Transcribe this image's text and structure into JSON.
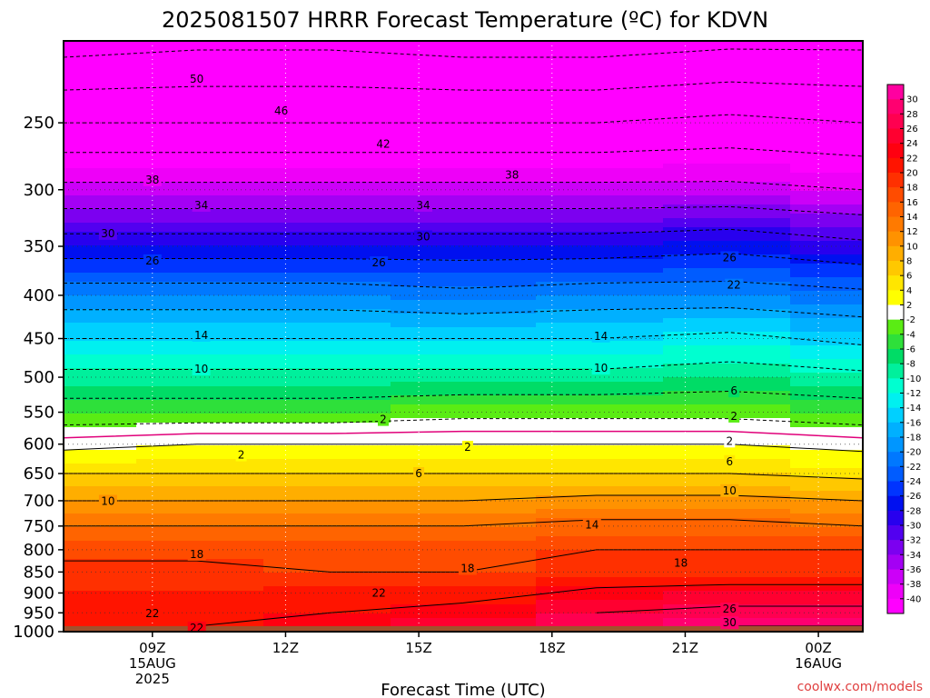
{
  "chart_data": {
    "type": "heatmap",
    "title": "2025081507 HRRR Forecast Temperature (ºC) for KDVN",
    "xlabel": "Forecast Time (UTC)",
    "ylabel": "",
    "credit": "coolwx.com/models",
    "y_scale": "log",
    "y_inverted": true,
    "ylim": [
      1000,
      200
    ],
    "yticks": [
      "250",
      "300",
      "350",
      "400",
      "450",
      "500",
      "550",
      "600",
      "650",
      "700",
      "750",
      "800",
      "850",
      "900",
      "950",
      "1000"
    ],
    "xticks": [
      {
        "hour": 9,
        "lines": [
          "09Z",
          "15AUG",
          "2025"
        ]
      },
      {
        "hour": 12,
        "lines": [
          "12Z"
        ]
      },
      {
        "hour": 15,
        "lines": [
          "15Z"
        ]
      },
      {
        "hour": 18,
        "lines": [
          "18Z"
        ]
      },
      {
        "hour": 21,
        "lines": [
          "21Z"
        ]
      },
      {
        "hour": 24,
        "lines": [
          "00Z",
          "16AUG"
        ]
      }
    ],
    "xlim_hours": [
      7.0,
      25.0
    ],
    "colorbar_levels": [
      30,
      28,
      26,
      24,
      22,
      20,
      18,
      16,
      14,
      12,
      10,
      8,
      6,
      4,
      2,
      -2,
      -4,
      -6,
      -8,
      -10,
      -12,
      -14,
      -16,
      -18,
      -20,
      -22,
      -24,
      -26,
      -28,
      -30,
      -32,
      -34,
      -36,
      -38,
      -40
    ],
    "colorbar_colors": [
      "#ff00a0",
      "#ff0070",
      "#ff0050",
      "#ff0030",
      "#ff0010",
      "#ff1400",
      "#ff3000",
      "#ff4c00",
      "#ff6400",
      "#ff7a00",
      "#ff9200",
      "#ffae00",
      "#ffc800",
      "#ffe600",
      "#ffff00",
      "#ffffff",
      "#5aec14",
      "#2ee03a",
      "#00dc66",
      "#00f09c",
      "#00ffd0",
      "#00f0f0",
      "#00d0ff",
      "#00b0ff",
      "#0096ff",
      "#0078ff",
      "#005cff",
      "#0034ff",
      "#0010f0",
      "#2800ee",
      "#5200f0",
      "#7c00f0",
      "#a400f4",
      "#cc00f8",
      "#ee00f8",
      "#ff00ff"
    ],
    "ground_color": "#a0522d",
    "surface_pressure": 985,
    "profile_levels_hpa": [
      200,
      250,
      300,
      350,
      400,
      450,
      500,
      550,
      600,
      650,
      700,
      750,
      800,
      850,
      900,
      950,
      985
    ],
    "profile_hours": [
      7,
      10,
      13,
      16,
      19,
      22,
      25
    ],
    "temperature_c": [
      [
        -56,
        -55,
        -55,
        -56,
        -56,
        -55,
        -55
      ],
      [
        -46,
        -46,
        -46,
        -46,
        -46,
        -45,
        -46
      ],
      [
        -37,
        -37,
        -37,
        -37,
        -37,
        -37,
        -38
      ],
      [
        -28,
        -28,
        -28,
        -28,
        -28,
        -27,
        -29
      ],
      [
        -20,
        -20,
        -20,
        -21,
        -20,
        -20,
        -21
      ],
      [
        -14,
        -14,
        -14,
        -14,
        -14,
        -13,
        -15
      ],
      [
        -9,
        -9,
        -9,
        -9,
        -9,
        -8,
        -9
      ],
      [
        -4,
        -4,
        -4,
        -3,
        -3,
        -3,
        -4
      ],
      [
        1,
        2,
        2,
        2,
        2,
        2,
        1
      ],
      [
        6,
        6,
        6,
        6,
        6,
        6,
        5
      ],
      [
        10,
        10,
        10,
        10,
        11,
        11,
        10
      ],
      [
        14,
        14,
        14,
        14,
        15,
        15,
        14
      ],
      [
        17,
        17,
        17,
        17,
        18,
        18,
        18
      ],
      [
        19,
        19,
        18,
        18,
        19,
        19,
        19
      ],
      [
        20,
        20,
        21,
        21,
        23,
        24,
        24
      ],
      [
        21,
        21,
        22,
        23,
        26,
        27,
        27
      ],
      [
        21,
        22,
        23,
        25,
        28,
        30,
        30
      ]
    ],
    "contour_labels": [
      {
        "text": "50",
        "hour": 10.0,
        "p": 222
      },
      {
        "text": "46",
        "hour": 11.9,
        "p": 242
      },
      {
        "text": "42",
        "hour": 14.2,
        "p": 265
      },
      {
        "text": "38",
        "hour": 9.0,
        "p": 292
      },
      {
        "text": "38",
        "hour": 17.1,
        "p": 288
      },
      {
        "text": "34",
        "hour": 10.1,
        "p": 313
      },
      {
        "text": "34",
        "hour": 15.1,
        "p": 313
      },
      {
        "text": "30",
        "hour": 8.0,
        "p": 338
      },
      {
        "text": "30",
        "hour": 15.1,
        "p": 341
      },
      {
        "text": "26",
        "hour": 9.0,
        "p": 364
      },
      {
        "text": "26",
        "hour": 14.1,
        "p": 366
      },
      {
        "text": "26",
        "hour": 22.0,
        "p": 361
      },
      {
        "text": "22",
        "hour": 22.1,
        "p": 389
      },
      {
        "text": "14",
        "hour": 10.1,
        "p": 446
      },
      {
        "text": "14",
        "hour": 19.1,
        "p": 447
      },
      {
        "text": "10",
        "hour": 10.1,
        "p": 489
      },
      {
        "text": "10",
        "hour": 19.1,
        "p": 488
      },
      {
        "text": "6",
        "hour": 22.1,
        "p": 519
      },
      {
        "text": "2",
        "hour": 14.2,
        "p": 561
      },
      {
        "text": "2",
        "hour": 22.1,
        "p": 556
      },
      {
        "text": "2",
        "hour": 11.0,
        "p": 618
      },
      {
        "text": "2",
        "hour": 16.1,
        "p": 605
      },
      {
        "text": "2",
        "hour": 22.0,
        "p": 595
      },
      {
        "text": "6",
        "hour": 15.0,
        "p": 650
      },
      {
        "text": "6",
        "hour": 22.0,
        "p": 629
      },
      {
        "text": "10",
        "hour": 8.0,
        "p": 701
      },
      {
        "text": "10",
        "hour": 22.0,
        "p": 681
      },
      {
        "text": "14",
        "hour": 18.9,
        "p": 748
      },
      {
        "text": "18",
        "hour": 10.0,
        "p": 810
      },
      {
        "text": "18",
        "hour": 16.1,
        "p": 842
      },
      {
        "text": "18",
        "hour": 20.9,
        "p": 829
      },
      {
        "text": "22",
        "hour": 14.1,
        "p": 900
      },
      {
        "text": "22",
        "hour": 9.0,
        "p": 952
      },
      {
        "text": "22",
        "hour": 10.0,
        "p": 990
      },
      {
        "text": "26",
        "hour": 22.0,
        "p": 940
      },
      {
        "text": "30",
        "hour": 22.0,
        "p": 976
      }
    ]
  }
}
